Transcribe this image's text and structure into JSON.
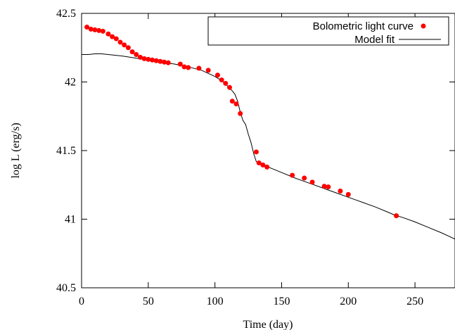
{
  "chart_data": {
    "type": "scatter",
    "xlabel": "Time (day)",
    "ylabel": "log L (erg/s)",
    "xlim": [
      0,
      280
    ],
    "ylim": [
      40.5,
      42.5
    ],
    "xticks": [
      0,
      50,
      100,
      150,
      200,
      250
    ],
    "yticks": [
      40.5,
      41,
      41.5,
      42,
      42.5
    ],
    "xtick_labels": [
      "0",
      "50",
      "100",
      "150",
      "200",
      "250"
    ],
    "ytick_labels": [
      "40.5",
      "41",
      "41.5",
      "42",
      "42.5"
    ],
    "grid": false,
    "legend_position": "top-right",
    "series": [
      {
        "name": "Bolometric light curve",
        "kind": "points",
        "color": "#ff0000",
        "x": [
          4,
          7,
          10,
          13,
          16,
          20,
          23,
          26,
          29,
          32,
          35,
          38,
          41,
          44,
          47,
          50,
          53,
          56,
          59,
          62,
          65,
          74,
          77,
          80,
          88,
          95,
          102,
          105,
          108,
          111,
          113,
          116,
          119,
          131,
          133,
          136,
          139,
          158,
          167,
          173,
          182,
          185,
          194,
          200,
          236
        ],
        "y": [
          42.4,
          42.385,
          42.38,
          42.375,
          42.37,
          42.35,
          42.33,
          42.315,
          42.29,
          42.27,
          42.25,
          42.22,
          42.2,
          42.18,
          42.17,
          42.165,
          42.16,
          42.155,
          42.15,
          42.145,
          42.14,
          42.13,
          42.11,
          42.105,
          42.1,
          42.085,
          42.05,
          42.015,
          41.99,
          41.96,
          41.86,
          41.84,
          41.77,
          41.49,
          41.41,
          41.395,
          41.38,
          41.32,
          41.3,
          41.27,
          41.24,
          41.235,
          41.205,
          41.18,
          41.025
        ]
      },
      {
        "name": "Model fit",
        "kind": "line",
        "color": "#000000",
        "x": [
          0,
          5,
          10,
          15,
          20,
          30,
          40,
          50,
          60,
          70,
          80,
          90,
          100,
          105,
          110,
          113,
          115,
          117,
          119,
          121,
          123,
          125,
          127,
          129,
          131,
          133,
          135,
          140,
          150,
          160,
          170,
          180,
          190,
          200,
          210,
          220,
          230,
          236,
          240,
          250,
          260,
          270,
          280
        ],
        "y": [
          42.2,
          42.2,
          42.205,
          42.205,
          42.2,
          42.19,
          42.175,
          42.16,
          42.145,
          42.13,
          42.11,
          42.085,
          42.04,
          42.01,
          41.965,
          41.935,
          41.91,
          41.86,
          41.78,
          41.72,
          41.69,
          41.62,
          41.56,
          41.48,
          41.42,
          41.405,
          41.4,
          41.38,
          41.34,
          41.3,
          41.265,
          41.23,
          41.195,
          41.16,
          41.125,
          41.09,
          41.05,
          41.025,
          41.015,
          40.98,
          40.94,
          40.9,
          40.855
        ]
      }
    ]
  }
}
